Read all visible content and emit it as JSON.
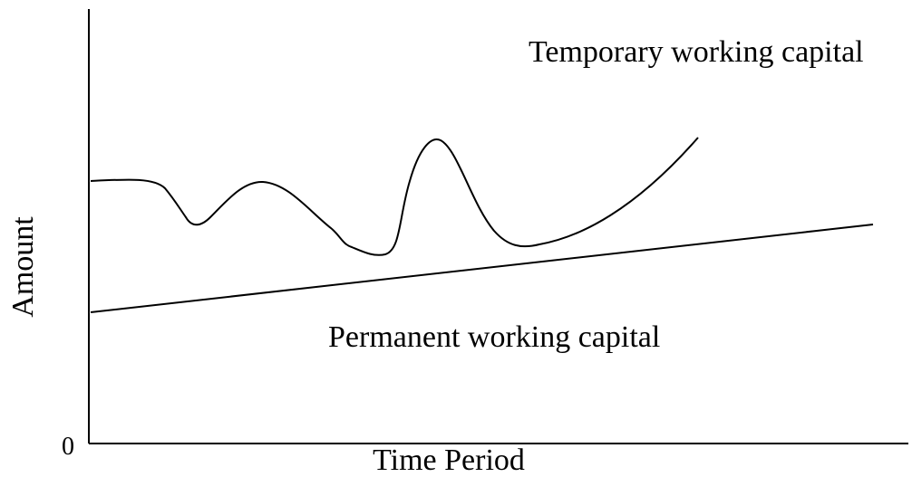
{
  "labels": {
    "temporary": "Temporary working capital",
    "permanent": "Permanent working capital",
    "y_axis": "Amount",
    "origin": "0",
    "x_axis": "Time Period"
  }
}
